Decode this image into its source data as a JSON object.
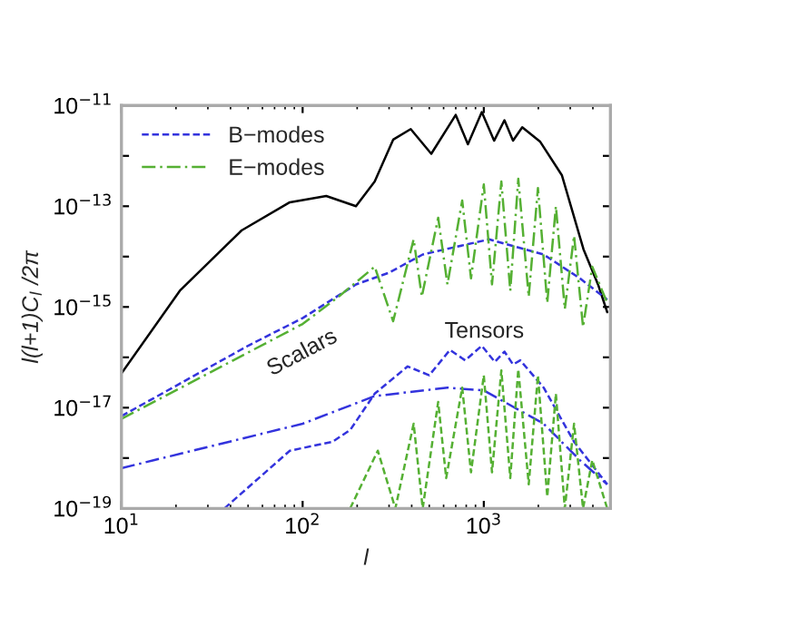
{
  "chart_data": {
    "type": "line",
    "xlabel": "l",
    "ylabel": "l(l+1)C$_{l}$ /2π",
    "log": "xy",
    "legend": "top left",
    "grid": false,
    "xlim": [
      10,
      5000
    ],
    "ylim": [
      1e-19,
      1e-11
    ],
    "xticks": [
      {
        "value": 10,
        "label": "10$^{1}$"
      },
      {
        "value": 100,
        "label": "10$^{2}$"
      },
      {
        "value": 1000,
        "label": "10$^{3}$"
      }
    ],
    "yticks": [
      {
        "value": 1e-19,
        "label": "10$^{−19}$"
      },
      {
        "value": 1e-18,
        "label": null
      },
      {
        "value": 1e-17,
        "label": "10$^{−17}$"
      },
      {
        "value": 1e-16,
        "label": null
      },
      {
        "value": 1e-15,
        "label": "10$^{−15}$"
      },
      {
        "value": 1e-14,
        "label": null
      },
      {
        "value": 1e-13,
        "label": "10$^{−13}$"
      },
      {
        "value": 1e-12,
        "label": null
      },
      {
        "value": 1e-11,
        "label": "10$^{−11}$"
      }
    ],
    "annotations": [
      "Scalars",
      "Tensors"
    ],
    "series": [
      {
        "color": "#000000",
        "line_style": "solid",
        "x": [
          10,
          21,
          46,
          85,
          135,
          197,
          250,
          316,
          395,
          513,
          700,
          817,
          975,
          1140,
          1300,
          1450,
          1630,
          2050,
          2700,
          3550,
          4270,
          4800
        ],
        "values": [
          4.8e-17,
          2.1e-15,
          3.3e-14,
          1.2e-13,
          1.6e-13,
          1e-13,
          3.1e-13,
          2.1e-12,
          3.4e-12,
          1.1e-12,
          6.5e-12,
          1.7e-12,
          7.4e-12,
          2e-12,
          5.1e-12,
          2e-12,
          3.7e-12,
          1.9e-12,
          4.1e-13,
          1.4e-14,
          2.8e-15,
          7.9e-16
        ]
      },
      {
        "name": "B−modes",
        "color": "#3333dd",
        "line_style": "dashed",
        "x": [
          10,
          50,
          100,
          197,
          300,
          460,
          1070,
          2140,
          3390,
          4800
        ],
        "values": [
          6.8e-18,
          1.7e-16,
          6e-16,
          2.8e-15,
          4.8e-15,
          1.1e-14,
          2.2e-14,
          1.1e-14,
          3.7e-15,
          1.4e-15
        ]
      },
      {
        "name": "E−modes",
        "color": "#55b033",
        "line_style": "dashdot",
        "x": [
          10,
          100,
          158,
          250,
          316,
          410,
          455,
          560,
          630,
          760,
          850,
          1000,
          1110,
          1250,
          1400,
          1550,
          1770,
          1990,
          2240,
          2500,
          2800,
          3150,
          3530,
          3970,
          4800
        ],
        "values": [
          6e-18,
          4.6e-16,
          1.6e-15,
          6.3e-15,
          5.2e-16,
          2.2e-14,
          1.6e-15,
          5.9e-14,
          2.8e-15,
          1.3e-13,
          3.7e-15,
          2.7e-13,
          2.8e-15,
          3.1e-13,
          2.1e-15,
          3.5e-13,
          1.6e-15,
          2.3e-13,
          1.2e-15,
          1e-13,
          9.1e-16,
          2.6e-14,
          4e-16,
          6.3e-15,
          1.2e-15
        ]
      },
      {
        "color": "#3333dd",
        "line_style": "dashed",
        "x": [
          37,
          85,
          146,
          183,
          250,
          380,
          500,
          650,
          790,
          975,
          1150,
          1300,
          1450,
          1590,
          2140,
          3150,
          4800
        ],
        "values": [
          1e-19,
          1.4e-18,
          2.1e-18,
          3.6e-18,
          1.9e-17,
          6.6e-17,
          4.4e-17,
          1.4e-16,
          8.7e-17,
          1.7e-16,
          8.1e-17,
          1.3e-16,
          7.2e-17,
          8.7e-17,
          2.5e-17,
          2.1e-18,
          3e-19
        ]
      },
      {
        "color": "#3333dd",
        "line_style": "dashdot",
        "x": [
          10,
          100,
          250,
          630,
          1000,
          2140,
          3390,
          4800
        ],
        "values": [
          6.3e-19,
          4.8e-18,
          1.7e-17,
          2.5e-17,
          2.2e-17,
          4.8e-18,
          9.1e-19,
          3e-19
        ]
      },
      {
        "color": "#55b033",
        "line_style": "dashed",
        "x": [
          183,
          260,
          325,
          410,
          460,
          560,
          620,
          760,
          850,
          1000,
          1110,
          1250,
          1400,
          1550,
          1770,
          1990,
          2240,
          2500,
          2800,
          3150,
          3530,
          3970,
          4800
        ],
        "values": [
          1e-19,
          1.4e-18,
          1e-19,
          4.8e-18,
          1e-19,
          1.3e-17,
          4e-19,
          2.5e-17,
          5.2e-19,
          4.4e-17,
          5.2e-19,
          5.5e-17,
          4e-19,
          5.8e-17,
          3e-19,
          4.4e-17,
          1.7e-19,
          1.9e-17,
          1e-19,
          4.8e-18,
          1e-19,
          9.1e-19,
          1e-19
        ]
      }
    ]
  }
}
